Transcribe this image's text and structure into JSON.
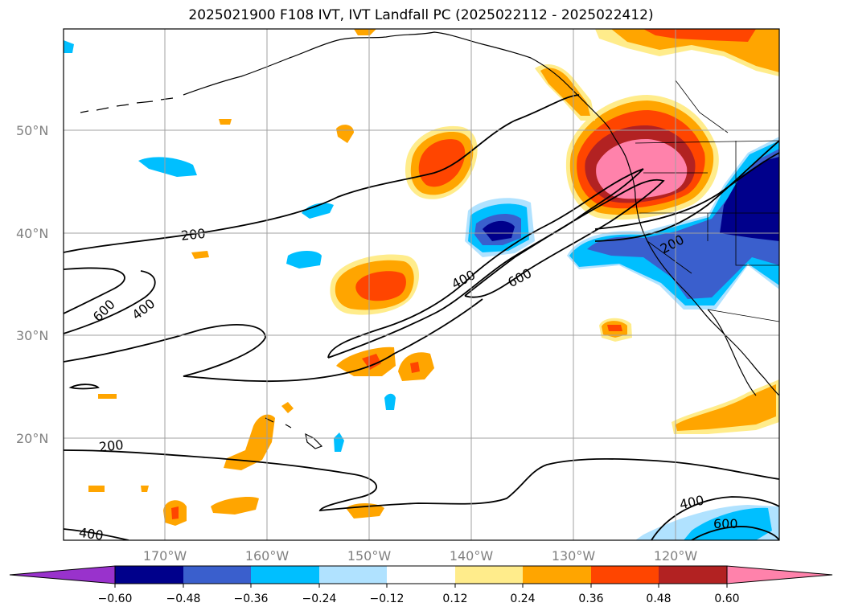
{
  "title": "2025021900 F108 IVT, IVT Landfall PC (2025022112 - 2025022412)",
  "latitude_labels": [
    "50°N",
    "40°N",
    "30°N",
    "20°N"
  ],
  "longitude_labels": [
    "170°W",
    "160°W",
    "150°W",
    "140°W",
    "130°W",
    "120°W"
  ],
  "ivt_contour_labels": [
    "200",
    "400",
    "600",
    "400",
    "600",
    "200",
    "200",
    "400",
    "600",
    "400"
  ],
  "colorbar": {
    "ticks": [
      "−0.60",
      "−0.48",
      "−0.36",
      "−0.24",
      "−0.12",
      "0.12",
      "0.24",
      "0.36",
      "0.48",
      "0.60"
    ],
    "colors": [
      "#9932cc",
      "#00008b",
      "#3a5fcd",
      "#00bfff",
      "#b0e2ff",
      "#ffffff",
      "#ffec8b",
      "#ffa500",
      "#ff4500",
      "#b22222",
      "#ff82ab"
    ]
  }
}
